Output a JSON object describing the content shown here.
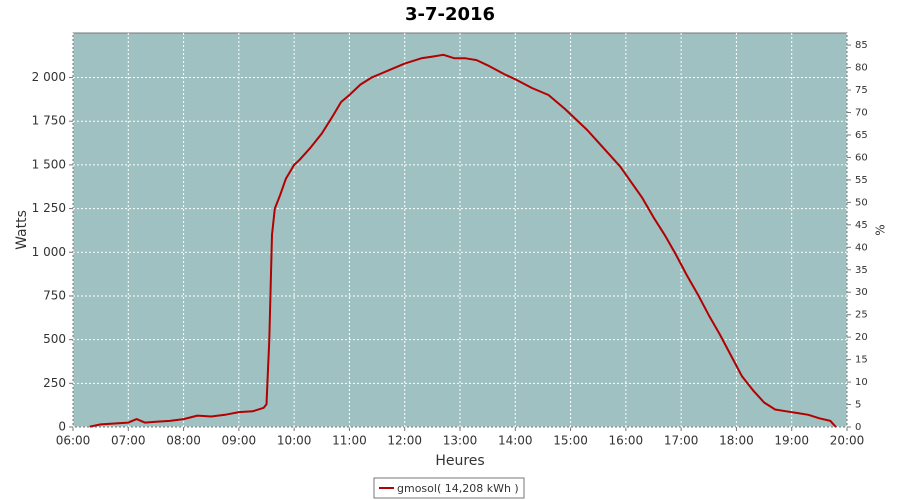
{
  "chart_data": {
    "type": "line",
    "title": "3-7-2016",
    "x_label": "Heures",
    "y_label": "Watts",
    "y2_label": "%",
    "x": [
      6.3,
      6.5,
      6.75,
      7.0,
      7.15,
      7.3,
      7.5,
      7.75,
      8.0,
      8.25,
      8.5,
      8.75,
      9.0,
      9.25,
      9.45,
      9.5,
      9.55,
      9.6,
      9.65,
      9.75,
      9.85,
      10.0,
      10.1,
      10.3,
      10.5,
      10.7,
      10.85,
      11.0,
      11.2,
      11.4,
      11.7,
      12.0,
      12.3,
      12.5,
      12.7,
      12.9,
      13.1,
      13.3,
      13.5,
      13.8,
      14.0,
      14.3,
      14.6,
      14.9,
      15.1,
      15.3,
      15.5,
      15.7,
      15.9,
      16.1,
      16.3,
      16.5,
      16.7,
      16.9,
      17.1,
      17.3,
      17.5,
      17.7,
      17.9,
      18.1,
      18.3,
      18.5,
      18.7,
      18.9,
      19.1,
      19.3,
      19.5,
      19.7,
      19.8
    ],
    "series": [
      {
        "name": "gmosol( 14,208 kWh )",
        "color": "#b30000",
        "values": [
          2,
          15,
          20,
          25,
          45,
          25,
          30,
          35,
          45,
          65,
          60,
          70,
          85,
          90,
          110,
          130,
          500,
          1100,
          1250,
          1330,
          1420,
          1500,
          1530,
          1600,
          1680,
          1780,
          1860,
          1900,
          1960,
          2000,
          2040,
          2080,
          2110,
          2120,
          2130,
          2110,
          2110,
          2100,
          2070,
          2020,
          1990,
          1940,
          1900,
          1820,
          1760,
          1700,
          1630,
          1560,
          1490,
          1400,
          1310,
          1200,
          1100,
          990,
          870,
          760,
          640,
          530,
          410,
          290,
          210,
          140,
          100,
          90,
          80,
          70,
          50,
          35,
          0
        ]
      }
    ],
    "xlim": [
      6,
      20
    ],
    "xticks": [
      {
        "value": 6,
        "label": "06:00"
      },
      {
        "value": 7,
        "label": "07:00"
      },
      {
        "value": 8,
        "label": "08:00"
      },
      {
        "value": 9,
        "label": "09:00"
      },
      {
        "value": 10,
        "label": "10:00"
      },
      {
        "value": 11,
        "label": "11:00"
      },
      {
        "value": 12,
        "label": "12:00"
      },
      {
        "value": 13,
        "label": "13:00"
      },
      {
        "value": 14,
        "label": "14:00"
      },
      {
        "value": 15,
        "label": "15:00"
      },
      {
        "value": 16,
        "label": "16:00"
      },
      {
        "value": 17,
        "label": "17:00"
      },
      {
        "value": 18,
        "label": "18:00"
      },
      {
        "value": 19,
        "label": "19:00"
      },
      {
        "value": 20,
        "label": "20:00"
      }
    ],
    "ylim": [
      0,
      2255
    ],
    "yticks": [
      0,
      250,
      500,
      750,
      {
        "value": 1000,
        "label": "1 000"
      },
      {
        "value": 1250,
        "label": "1 250"
      },
      {
        "value": 1500,
        "label": "1 500"
      },
      {
        "value": 1750,
        "label": "1 750"
      },
      {
        "value": 2000,
        "label": "2 000"
      }
    ],
    "y2lim": [
      0,
      87.7
    ],
    "y2ticks": [
      0,
      5,
      10,
      15,
      20,
      25,
      30,
      35,
      40,
      45,
      50,
      55,
      60,
      65,
      70,
      75,
      80,
      85
    ],
    "grid": true,
    "background": "#9fc1c1",
    "legend": "bottom"
  }
}
